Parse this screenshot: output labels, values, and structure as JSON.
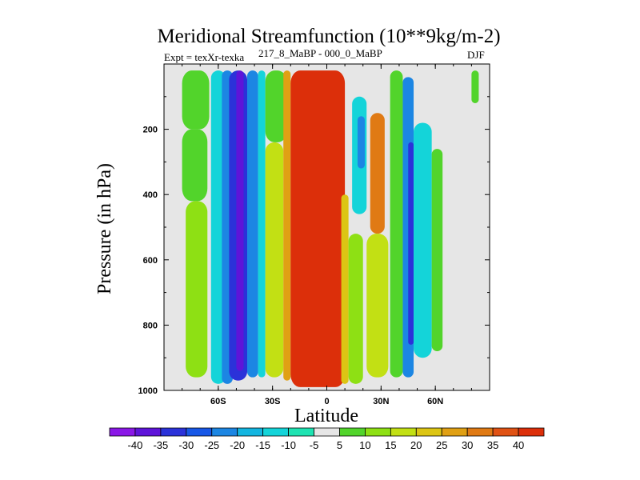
{
  "chart_data": {
    "type": "heatmap",
    "title": "Meridional Streamfunction (10**9kg/m-2)",
    "subtitle_left": "Expt = texXr-texka",
    "subtitle_center": "217_8_MaBP - 000_0_MaBP",
    "subtitle_right": "DJF",
    "xlabel": "Latitude",
    "ylabel": "Pressure (in hPa)",
    "xlim": [
      -90,
      90
    ],
    "ylim": [
      1000,
      0
    ],
    "x_ticks": [
      {
        "value": -60,
        "label": "60S"
      },
      {
        "value": -30,
        "label": "30S"
      },
      {
        "value": 0,
        "label": "0"
      },
      {
        "value": 30,
        "label": "30N"
      },
      {
        "value": 60,
        "label": "60N"
      }
    ],
    "y_ticks": [
      {
        "value": 200,
        "label": "200"
      },
      {
        "value": 400,
        "label": "400"
      },
      {
        "value": 600,
        "label": "600"
      },
      {
        "value": 800,
        "label": "800"
      },
      {
        "value": 1000,
        "label": "1000"
      }
    ],
    "colorbar": {
      "levels": [
        "-40",
        "-35",
        "-30",
        "-25",
        "-20",
        "-15",
        "-10",
        "-5",
        "5",
        "10",
        "15",
        "20",
        "25",
        "30",
        "35",
        "40"
      ],
      "colors": [
        "#8a17e6",
        "#5e14d9",
        "#2b32d9",
        "#1757e6",
        "#1c86e3",
        "#13b5e0",
        "#14d4d9",
        "#1ee3b2",
        "#e6e6e6",
        "#52d42b",
        "#8ee014",
        "#c2e014",
        "#dcc514",
        "#e0a014",
        "#e07a14",
        "#e05214",
        "#dc2f0a"
      ]
    },
    "field": {
      "description": "difference in meridional streamfunction; values in colorbar units",
      "cells": [
        {
          "lat": [
            -80,
            -65
          ],
          "p": [
            20,
            200
          ],
          "v": 8
        },
        {
          "lat": [
            -80,
            -66
          ],
          "p": [
            200,
            420
          ],
          "v": 6
        },
        {
          "lat": [
            -78,
            -66
          ],
          "p": [
            420,
            960
          ],
          "v": 12
        },
        {
          "lat": [
            -75,
            -68
          ],
          "p": [
            500,
            900
          ],
          "v": 15
        },
        {
          "lat": [
            -64,
            -56
          ],
          "p": [
            20,
            980
          ],
          "v": -12
        },
        {
          "lat": [
            -58,
            -52
          ],
          "p": [
            20,
            980
          ],
          "v": -22
        },
        {
          "lat": [
            -54,
            -44
          ],
          "p": [
            20,
            970
          ],
          "v": -30
        },
        {
          "lat": [
            -50,
            -46
          ],
          "p": [
            20,
            940
          ],
          "v": -37
        },
        {
          "lat": [
            -44,
            -38
          ],
          "p": [
            20,
            960
          ],
          "v": -24
        },
        {
          "lat": [
            -38,
            -34
          ],
          "p": [
            20,
            960
          ],
          "v": -12
        },
        {
          "lat": [
            -34,
            -22
          ],
          "p": [
            20,
            240
          ],
          "v": 10
        },
        {
          "lat": [
            -34,
            -24
          ],
          "p": [
            240,
            960
          ],
          "v": 20
        },
        {
          "lat": [
            -24,
            -20
          ],
          "p": [
            20,
            970
          ],
          "v": 30
        },
        {
          "lat": [
            -20,
            10
          ],
          "p": [
            20,
            990
          ],
          "v": 42
        },
        {
          "lat": [
            8,
            12
          ],
          "p": [
            400,
            980
          ],
          "v": 25
        },
        {
          "lat": [
            12,
            20
          ],
          "p": [
            520,
            980
          ],
          "v": 15
        },
        {
          "lat": [
            14,
            22
          ],
          "p": [
            100,
            460
          ],
          "v": -12
        },
        {
          "lat": [
            17,
            21
          ],
          "p": [
            160,
            320
          ],
          "v": -22
        },
        {
          "lat": [
            24,
            32
          ],
          "p": [
            150,
            520
          ],
          "v": 32
        },
        {
          "lat": [
            22,
            34
          ],
          "p": [
            520,
            960
          ],
          "v": 20
        },
        {
          "lat": [
            35,
            42
          ],
          "p": [
            20,
            960
          ],
          "v": 10
        },
        {
          "lat": [
            42,
            48
          ],
          "p": [
            40,
            960
          ],
          "v": -20
        },
        {
          "lat": [
            45,
            48
          ],
          "p": [
            240,
            860
          ],
          "v": -32
        },
        {
          "lat": [
            48,
            58
          ],
          "p": [
            180,
            900
          ],
          "v": -12
        },
        {
          "lat": [
            58,
            64
          ],
          "p": [
            260,
            880
          ],
          "v": 8
        },
        {
          "lat": [
            80,
            84
          ],
          "p": [
            20,
            120
          ],
          "v": 10
        }
      ]
    }
  }
}
